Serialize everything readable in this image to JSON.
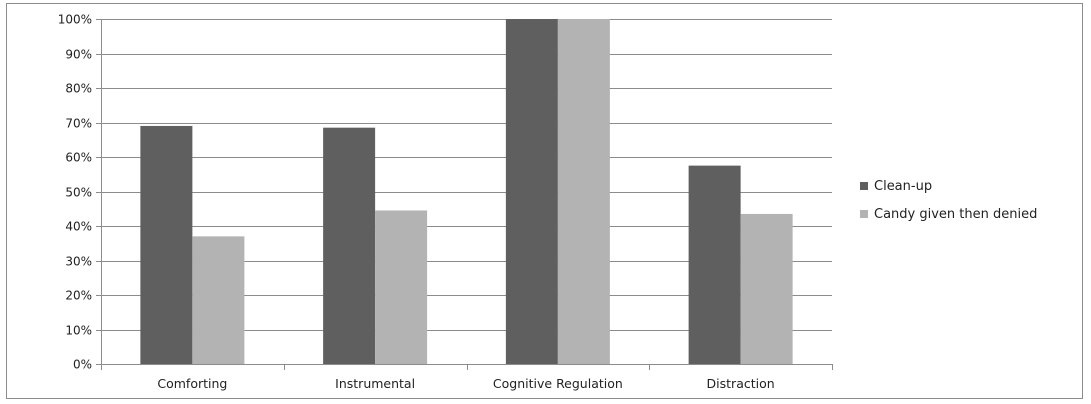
{
  "chart_data": {
    "type": "bar",
    "categories": [
      "Comforting",
      "Instrumental",
      "Cognitive Regulation",
      "Distraction"
    ],
    "series": [
      {
        "name": "Clean-up",
        "values": [
          69,
          68.5,
          100,
          57.5
        ],
        "color": "#5f5f5f"
      },
      {
        "name": "Candy given then denied",
        "values": [
          37,
          44.5,
          100,
          43.5
        ],
        "color": "#b3b3b3"
      }
    ],
    "yticks": [
      "0%",
      "10%",
      "20%",
      "30%",
      "40%",
      "50%",
      "60%",
      "70%",
      "80%",
      "90%",
      "100%"
    ],
    "ylim": [
      0,
      100
    ],
    "grid": true,
    "legend": "right",
    "gridline_color": "#8c8c8c"
  }
}
